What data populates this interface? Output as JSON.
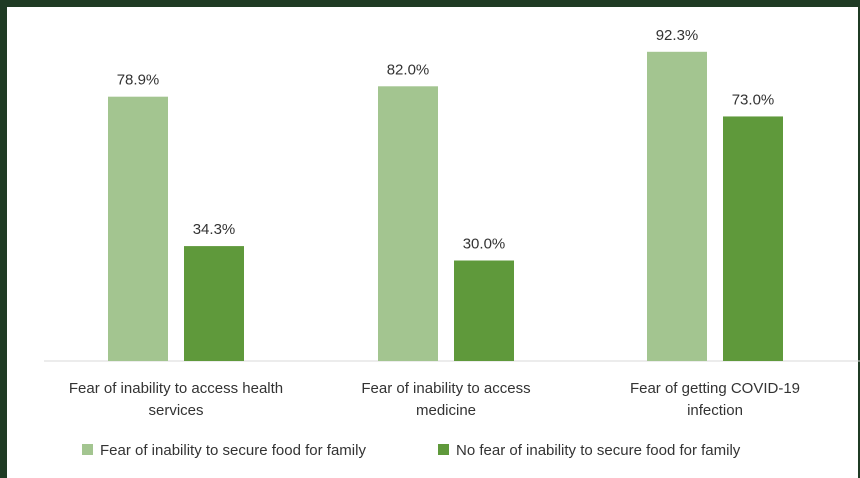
{
  "chart_data": {
    "type": "bar",
    "categories": [
      [
        "Fear of inability to access health",
        "services"
      ],
      [
        "Fear of inability to access",
        "medicine"
      ],
      [
        "Fear of getting COVID-19",
        "infection"
      ]
    ],
    "series": [
      {
        "name": "Fear of inability to secure food for family",
        "values": [
          78.9,
          82.0,
          92.3
        ],
        "labels": [
          "78.9%",
          "82.0%",
          "92.3%"
        ],
        "color": "#a3c590"
      },
      {
        "name": "No fear of inability to secure food for family",
        "values": [
          34.3,
          30.0,
          73.0
        ],
        "labels": [
          "34.3%",
          "30.0%",
          "73.0%"
        ],
        "color": "#5f993b"
      }
    ],
    "ylim": [
      0,
      100
    ],
    "grid": false,
    "legend_position": "bottom",
    "title": "",
    "xlabel": "",
    "ylabel": ""
  }
}
